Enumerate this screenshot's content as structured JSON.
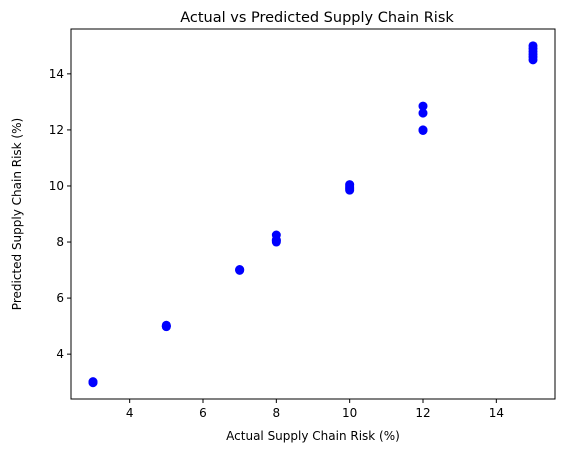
{
  "chart_data": {
    "type": "scatter",
    "title": "Actual vs Predicted Supply Chain Risk",
    "xlabel": "Actual Supply Chain Risk (%)",
    "ylabel": "Predicted Supply Chain Risk (%)",
    "xlim": [
      2.4,
      15.6
    ],
    "ylim": [
      2.4,
      15.6
    ],
    "xticks": [
      4,
      6,
      8,
      10,
      12,
      14
    ],
    "yticks": [
      4,
      6,
      8,
      10,
      12,
      14
    ],
    "grid": false,
    "marker_color": "#0000ff",
    "points": [
      {
        "x": 3,
        "y": 3.0
      },
      {
        "x": 3,
        "y": 2.98
      },
      {
        "x": 3,
        "y": 3.02
      },
      {
        "x": 5,
        "y": 5.0
      },
      {
        "x": 5,
        "y": 4.98
      },
      {
        "x": 5,
        "y": 5.03
      },
      {
        "x": 7,
        "y": 7.0
      },
      {
        "x": 7,
        "y": 6.99
      },
      {
        "x": 7,
        "y": 7.02
      },
      {
        "x": 8,
        "y": 8.0
      },
      {
        "x": 8,
        "y": 8.05
      },
      {
        "x": 8,
        "y": 8.08
      },
      {
        "x": 8,
        "y": 8.25
      },
      {
        "x": 10,
        "y": 9.85
      },
      {
        "x": 10,
        "y": 9.9
      },
      {
        "x": 10,
        "y": 9.95
      },
      {
        "x": 10,
        "y": 10.0
      },
      {
        "x": 10,
        "y": 10.05
      },
      {
        "x": 12,
        "y": 12.0
      },
      {
        "x": 12,
        "y": 11.98
      },
      {
        "x": 12,
        "y": 12.6
      },
      {
        "x": 12,
        "y": 12.85
      },
      {
        "x": 15,
        "y": 14.5
      },
      {
        "x": 15,
        "y": 14.6
      },
      {
        "x": 15,
        "y": 14.7
      },
      {
        "x": 15,
        "y": 14.8
      },
      {
        "x": 15,
        "y": 14.9
      },
      {
        "x": 15,
        "y": 15.0
      }
    ]
  }
}
